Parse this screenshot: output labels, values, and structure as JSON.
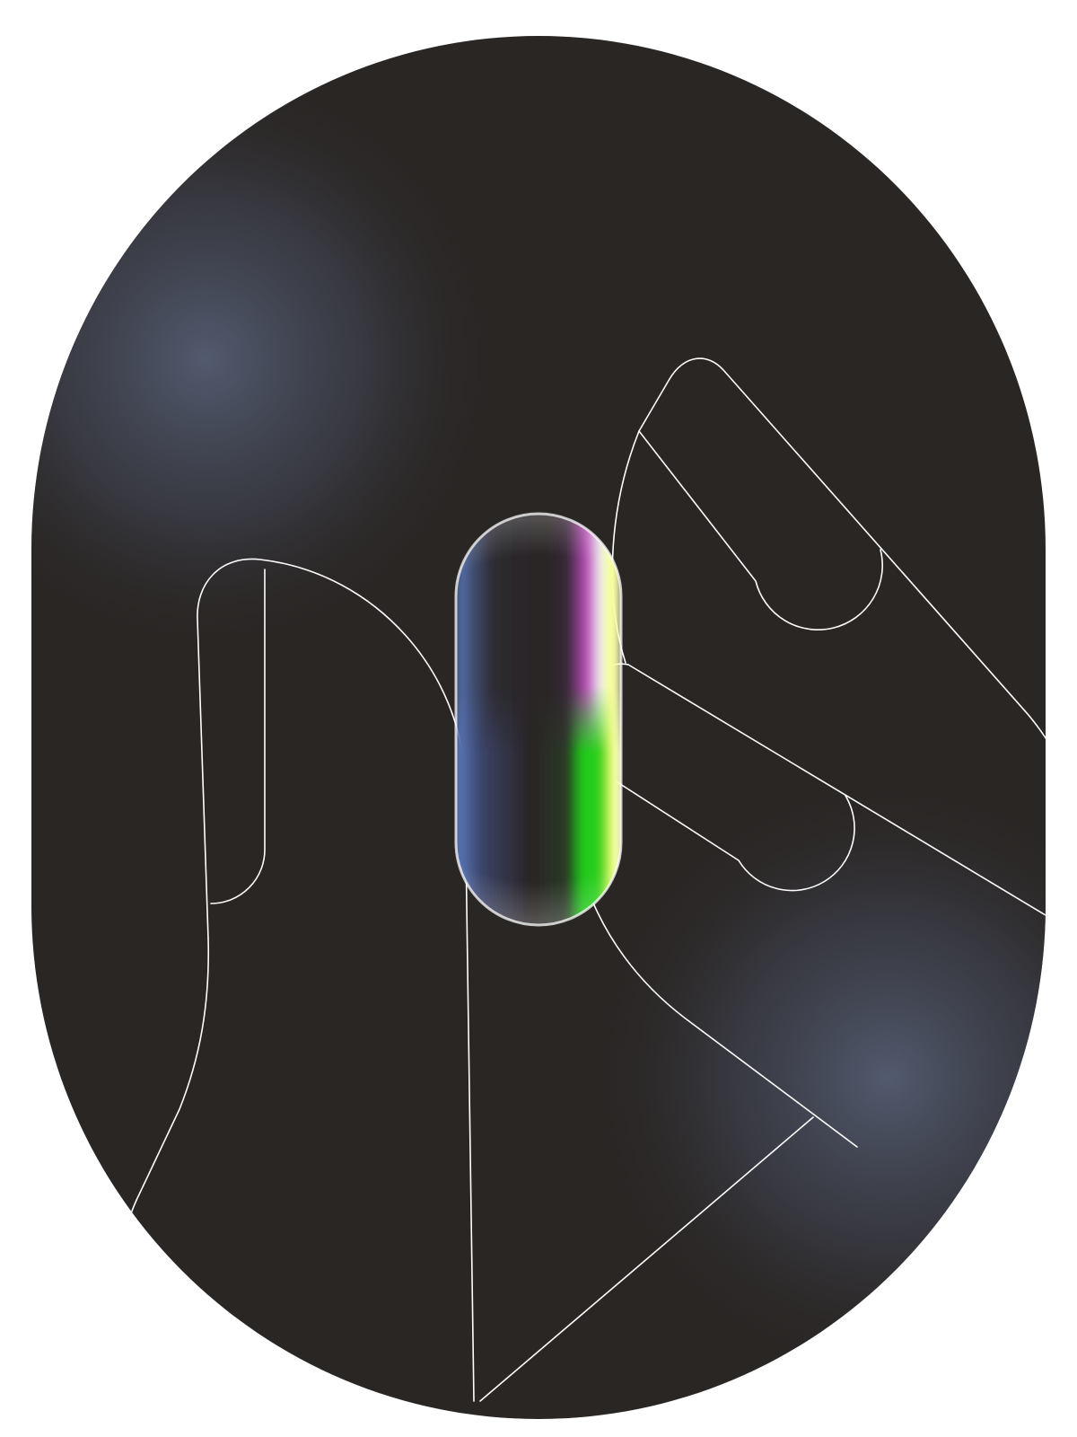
{
  "illustration": {
    "subject": "two-hands-holding-capsule",
    "colors": {
      "page_background": "#ffffff",
      "backdrop_base": "#2a2624",
      "backdrop_glow": "#525a6e",
      "outline_stroke": "#ffffff",
      "capsule_left": "#5d7cc4",
      "capsule_core": "#2a2424",
      "capsule_magenta": "#c24fc0",
      "capsule_yellow": "#f8ff6a",
      "capsule_green": "#1ec81a"
    }
  }
}
